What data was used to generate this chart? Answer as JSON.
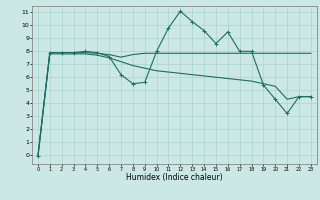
{
  "title": "",
  "xlabel": "Humidex (Indice chaleur)",
  "bg_color": "#cce8e4",
  "grid_color": "#aad4cc",
  "line_color": "#1a6e64",
  "xlim": [
    -0.5,
    23.5
  ],
  "ylim": [
    -0.7,
    11.5
  ],
  "xticks": [
    0,
    1,
    2,
    3,
    4,
    5,
    6,
    7,
    8,
    9,
    10,
    11,
    12,
    13,
    14,
    15,
    16,
    17,
    18,
    19,
    20,
    21,
    22,
    23
  ],
  "yticks": [
    0,
    1,
    2,
    3,
    4,
    5,
    6,
    7,
    8,
    9,
    10,
    11
  ],
  "series1_x": [
    0,
    1,
    2,
    3,
    4,
    5,
    6,
    7,
    8,
    9,
    10,
    11,
    12,
    13,
    14,
    15,
    16,
    17,
    18,
    19,
    20,
    21,
    22,
    23
  ],
  "series1_y": [
    -0.1,
    7.9,
    7.9,
    7.9,
    7.9,
    7.85,
    7.75,
    7.55,
    7.75,
    7.85,
    7.85,
    7.85,
    7.85,
    7.85,
    7.85,
    7.85,
    7.85,
    7.85,
    7.85,
    7.85,
    7.85,
    7.85,
    7.85,
    7.85
  ],
  "series2_x": [
    0,
    1,
    2,
    3,
    4,
    5,
    6,
    7,
    8,
    9,
    10,
    11,
    12,
    13,
    14,
    15,
    16,
    17,
    18,
    19,
    20,
    21,
    22,
    23
  ],
  "series2_y": [
    -0.1,
    7.8,
    7.8,
    7.8,
    7.8,
    7.7,
    7.5,
    7.2,
    6.9,
    6.7,
    6.5,
    6.4,
    6.3,
    6.2,
    6.1,
    6.0,
    5.9,
    5.8,
    5.7,
    5.5,
    5.3,
    4.3,
    4.5,
    4.5
  ],
  "series3_x": [
    0,
    1,
    2,
    3,
    4,
    5,
    6,
    7,
    8,
    9,
    10,
    11,
    12,
    13,
    14,
    15,
    16,
    17,
    18,
    19,
    20,
    21,
    22,
    23
  ],
  "series3_y": [
    -0.1,
    7.9,
    7.9,
    7.9,
    8.0,
    7.9,
    7.6,
    6.2,
    5.5,
    5.6,
    8.0,
    9.8,
    11.1,
    10.3,
    9.6,
    8.6,
    9.5,
    8.0,
    8.0,
    5.4,
    4.3,
    3.2,
    4.5,
    4.5
  ]
}
